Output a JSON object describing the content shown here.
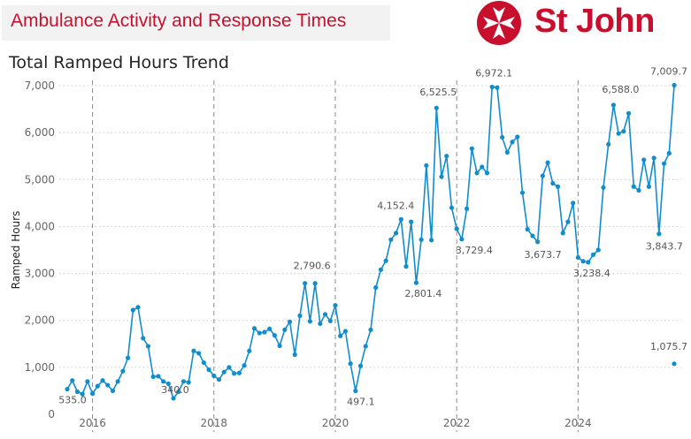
{
  "header": {
    "banner_title": "Ambulance Activity and Response Times",
    "logo_text": "St John",
    "logo_icon": "maltese-cross-icon"
  },
  "colors": {
    "brand": "#c8102e",
    "series": "#118dce",
    "grid": "#c8c8c8"
  },
  "chart_data": {
    "type": "line",
    "title": "Total Ramped Hours Trend",
    "xlabel": "",
    "ylabel": "Ramped Hours",
    "ylim": [
      0,
      7000
    ],
    "yticks": [
      0,
      1000,
      2000,
      3000,
      4000,
      5000,
      6000,
      7000
    ],
    "ytick_labels": [
      "0",
      "1,000",
      "2,000",
      "3,000",
      "4,000",
      "5,000",
      "6,000",
      "7,000"
    ],
    "xticks": [
      "2016",
      "2018",
      "2020",
      "2022",
      "2024"
    ],
    "year_lines": [
      "2016",
      "2018",
      "2020",
      "2022",
      "2024"
    ],
    "grid": true,
    "x_start": "2015-08",
    "series": [
      {
        "name": "",
        "values": [
          535,
          720,
          480,
          430,
          700,
          440,
          600,
          720,
          620,
          500,
          700,
          920,
          1200,
          2220,
          2280,
          1620,
          1450,
          800,
          810,
          700,
          650,
          340,
          480,
          700,
          680,
          1350,
          1300,
          1100,
          950,
          820,
          740,
          900,
          1000,
          870,
          880,
          1040,
          1350,
          1830,
          1730,
          1750,
          1820,
          1680,
          1460,
          1800,
          1970,
          1270,
          2100,
          2790.6,
          1980,
          2790,
          1930,
          2130,
          1990,
          2320,
          1670,
          1770,
          1080,
          497.1,
          1030,
          1450,
          1800,
          2700,
          3080,
          3270,
          3720,
          3860,
          4152.4,
          3150,
          4100,
          2801.4,
          3720,
          5300,
          3710,
          6525.5,
          5060,
          5500,
          4400,
          3950,
          3729.4,
          4380,
          5660,
          5140,
          5270,
          5140,
          6972.1,
          6960,
          5900,
          5580,
          5800,
          5910,
          4720,
          3940,
          3800,
          3673.7,
          5080,
          5360,
          4920,
          4850,
          3860,
          4100,
          4500,
          3340,
          3260,
          3238.4,
          3400,
          3500,
          4830,
          5750,
          6588.0,
          5980,
          6030,
          6410,
          4850,
          4770,
          5420,
          4850,
          5460,
          3843.7,
          5340,
          5560,
          7009.7
        ]
      },
      {
        "name": "",
        "values_partial": [
          {
            "x": "2025-08",
            "y": 1075.7
          }
        ]
      }
    ],
    "data_labels": [
      "535.0",
      "340.0",
      "497.1",
      "2,790.6",
      "2,801.4",
      "4,152.4",
      "6,525.5",
      "3,729.4",
      "6,972.1",
      "3,673.7",
      "3,238.4",
      "6,588.0",
      "3,843.7",
      "7,009.7",
      "1,075.7"
    ]
  }
}
